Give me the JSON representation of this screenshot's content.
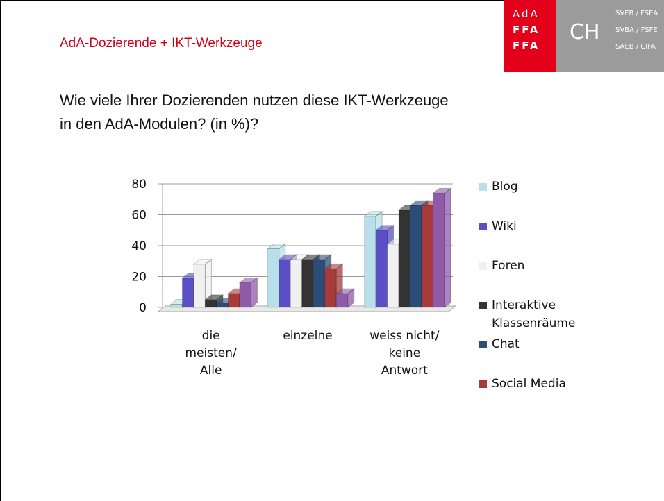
{
  "slide": {
    "title": "AdA-Dozierende + IKT-Werkzeuge",
    "question": [
      "Wie viele Ihrer Dozierenden nutzen diese IKT-Werkzeuge",
      "in den AdA-Modulen? (in %)?"
    ],
    "logo": {
      "marks": [
        "AdA",
        "FFA",
        "FFA"
      ],
      "country": "CH",
      "associations": [
        "SVEB / FSEA",
        "SVBA / FSFE",
        "SAEB / CIFA"
      ]
    }
  },
  "chart_data": {
    "type": "bar3d",
    "categories": [
      "die meisten/ Alle",
      "einzelne",
      "weiss nicht/ keine Antwort"
    ],
    "series": [
      {
        "name": "Blog",
        "color": "#b9e0ea",
        "values": [
          2,
          38,
          59
        ]
      },
      {
        "name": "Wiki",
        "color": "#5a4fc4",
        "values": [
          19,
          31,
          50
        ]
      },
      {
        "name": "Foren",
        "color": "#f0f0f0",
        "values": [
          28,
          31,
          41
        ]
      },
      {
        "name": "Interaktive Klassenräume",
        "color": "#333333",
        "values": [
          5,
          31,
          63
        ]
      },
      {
        "name": "Chat",
        "color": "#2c4d78",
        "values": [
          3,
          31,
          66
        ]
      },
      {
        "name": "Social Media",
        "color": "#a73b3b",
        "values": [
          9,
          25,
          66
        ]
      },
      {
        "color": "#8f5aa8",
        "values": [
          16,
          9,
          74
        ]
      }
    ],
    "ylim": [
      0,
      80
    ],
    "yticks": [
      0,
      20,
      40,
      60,
      80
    ],
    "grid": true
  }
}
